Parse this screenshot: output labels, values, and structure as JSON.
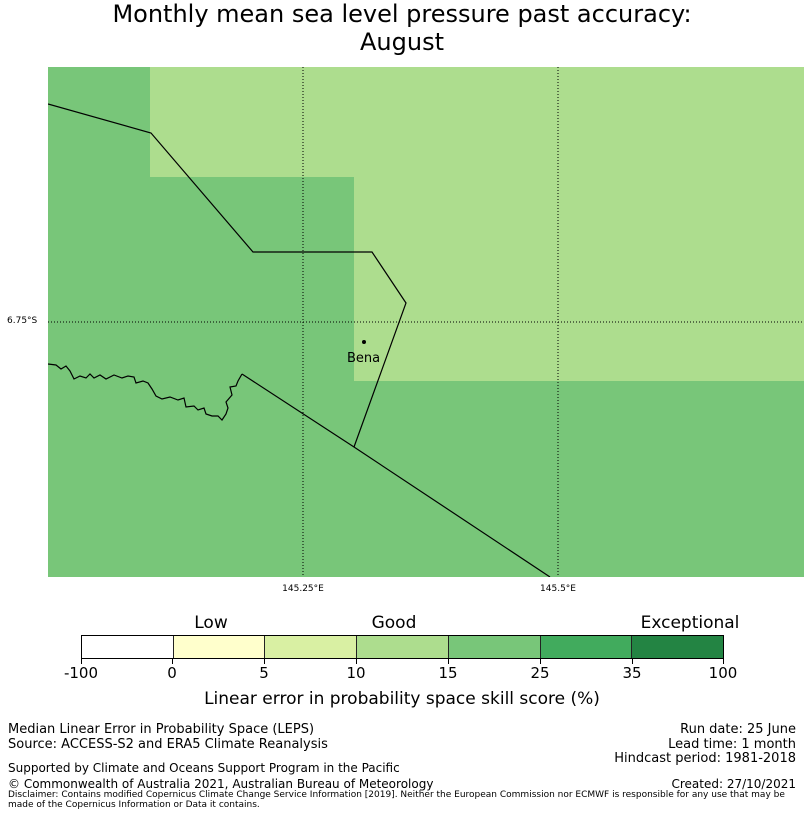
{
  "title": {
    "line1": "Monthly mean sea level pressure past accuracy:",
    "line2": "August"
  },
  "map": {
    "place_label": "Bena",
    "lat_label": "6.75°S",
    "lon_labels": [
      "145.25°E",
      "145.5°E"
    ],
    "colors": {
      "cell_15_25": "#78c679",
      "cell_10_15": "#addd8e",
      "border": "#000000"
    }
  },
  "colorbar": {
    "categories": [
      "Low",
      "Good",
      "Exceptional"
    ],
    "tick_labels": [
      "-100",
      "0",
      "5",
      "10",
      "15",
      "25",
      "35",
      "100"
    ],
    "segment_colors": [
      "#ffffff",
      "#ffffcc",
      "#d9f0a3",
      "#addd8e",
      "#78c679",
      "#41ab5d",
      "#238443"
    ],
    "title": "Linear error in probability space skill score (%)"
  },
  "footer": {
    "left1": "Median Linear Error in Probability Space (LEPS)",
    "left2": "Source: ACCESS-S2 and ERA5 Climate Reanalysis",
    "support": "Supported by Climate and Oceans Support Program in the Pacific",
    "copyright": "© Commonwealth of Australia 2021, Australian Bureau of Meteorology",
    "disclaimer": "Disclaimer: Contains modified Copernicus Climate Change Service Information [2019]. Neither the European Commission nor ECMWF is responsible for any use that may be made of the Copernicus Information or Data it contains.",
    "run_date": "Run date: 25 June",
    "lead_time": "Lead time: 1 month",
    "hindcast": "Hindcast period: 1981-2018",
    "created": "Created: 27/10/2021"
  }
}
